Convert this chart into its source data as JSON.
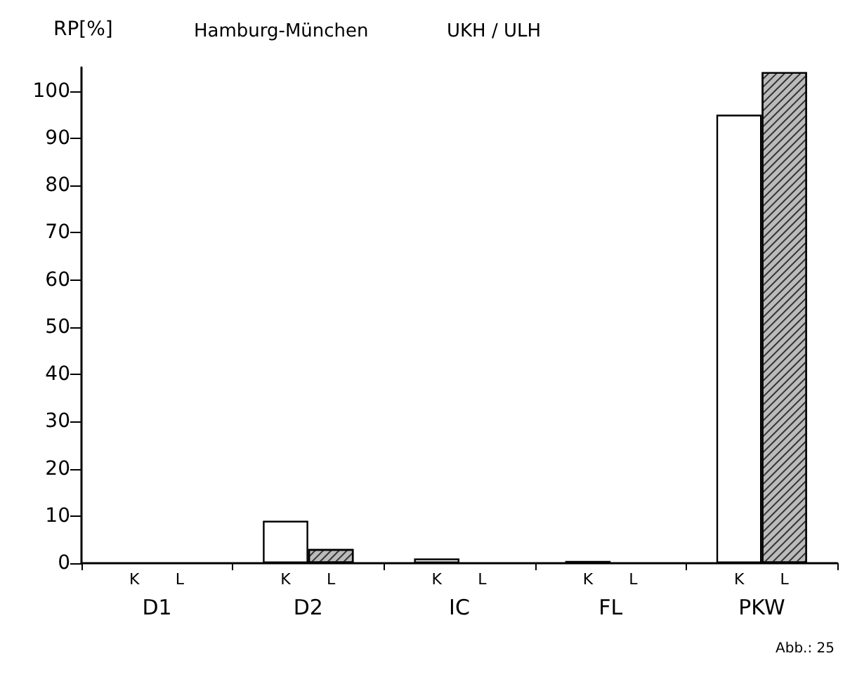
{
  "chart_data": {
    "type": "bar",
    "title": "Hamburg-München",
    "subtitle": "UKH / ULH",
    "ylabel": "RP[%]",
    "annotations": [
      "Abb.: 25"
    ],
    "categories": [
      "D1",
      "D2",
      "IC",
      "FL",
      "PKW"
    ],
    "series": [
      {
        "name": "K",
        "color": "#ffffff",
        "values": [
          0,
          9,
          1,
          0.5,
          95
        ]
      },
      {
        "name": "L",
        "color": "#bbbbbb",
        "values": [
          0,
          3,
          0,
          0,
          104
        ]
      }
    ],
    "ylim": [
      0,
      105
    ],
    "yticks": [
      0,
      10,
      20,
      30,
      40,
      50,
      60,
      70,
      80,
      90,
      100
    ],
    "grid": false,
    "legend": false
  }
}
